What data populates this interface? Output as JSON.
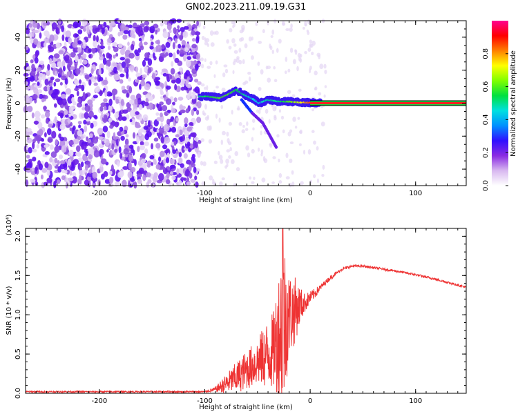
{
  "figure": {
    "title": "GN02.2023.211.09.19.G31"
  },
  "chart_data": [
    {
      "type": "heatmap",
      "xlabel": "Height of straight line (km)",
      "ylabel": "Frequency (Hz)",
      "xlim": [
        -270,
        148
      ],
      "ylim": [
        -50,
        50
      ],
      "xticks": [
        -200,
        -100,
        0,
        100
      ],
      "yticks": [
        -40,
        -20,
        0,
        20,
        40
      ],
      "colorbar": {
        "label": "Normalized spectral amplitude",
        "range": [
          0.0,
          1.0
        ],
        "ticks": [
          0.0,
          0.2,
          0.4,
          0.6,
          0.8
        ],
        "colors": [
          "#ffffff",
          "#d8b8f0",
          "#8a2be2",
          "#3010ff",
          "#0090ff",
          "#00e0e0",
          "#00e040",
          "#80ff00",
          "#ffff00",
          "#ff8000",
          "#ff0000",
          "#ff0090"
        ]
      },
      "features": {
        "noise_region_x": [
          -270,
          -105
        ],
        "frequency_track": {
          "x": [
            -105,
            -95,
            -85,
            -78,
            -70,
            -62,
            -55,
            -48,
            -40,
            -30,
            -20,
            -10,
            0,
            10,
            50,
            100,
            148
          ],
          "y": [
            4,
            4,
            3,
            5,
            8,
            5,
            3,
            0,
            2,
            1,
            1,
            0.5,
            0.3,
            0.2,
            0,
            0,
            0
          ],
          "amplitude": [
            0.5,
            0.55,
            0.6,
            0.6,
            0.55,
            0.5,
            0.45,
            0.45,
            0.5,
            0.5,
            0.6,
            0.7,
            0.85,
            0.9,
            0.95,
            0.95,
            0.95
          ]
        },
        "lower_branch": {
          "x": [
            -65,
            -55,
            -45,
            -38,
            -32
          ],
          "y": [
            2,
            -6,
            -12,
            -20,
            -27
          ]
        }
      }
    },
    {
      "type": "line",
      "xlabel": "Height of straight line (km)",
      "ylabel": "SNR (10 * v/v)",
      "yscale_label": "(x10⁴)",
      "xlim": [
        -270,
        148
      ],
      "ylim": [
        0.0,
        2.1
      ],
      "xticks": [
        -200,
        -100,
        0,
        100
      ],
      "yticks": [
        0.0,
        0.5,
        1.0,
        1.5,
        2.0
      ],
      "color": "#ee3333",
      "series": [
        {
          "x": [
            -270,
            -200,
            -150,
            -100,
            -90,
            -80,
            -70,
            -60,
            -50,
            -40,
            -35,
            -30,
            -26,
            -20,
            -15,
            -10,
            -5,
            0,
            5,
            10,
            15,
            20,
            25,
            30,
            40,
            50,
            60,
            80,
            100,
            120,
            148
          ],
          "values": [
            0.02,
            0.02,
            0.02,
            0.02,
            0.05,
            0.12,
            0.2,
            0.3,
            0.4,
            0.5,
            0.55,
            0.75,
            0.9,
            1.0,
            1.05,
            1.12,
            1.15,
            1.22,
            1.28,
            1.35,
            1.42,
            1.48,
            1.53,
            1.58,
            1.62,
            1.62,
            1.6,
            1.56,
            1.51,
            1.45,
            1.35
          ],
          "spread": [
            0.01,
            0.01,
            0.01,
            0.01,
            0.03,
            0.12,
            0.2,
            0.25,
            0.3,
            0.45,
            0.5,
            0.8,
            1.2,
            0.55,
            0.45,
            0.25,
            0.12,
            0.08,
            0.06,
            0.04,
            0.03,
            0.03,
            0.02,
            0.02,
            0.015,
            0.015,
            0.015,
            0.015,
            0.015,
            0.015,
            0.015
          ]
        }
      ]
    }
  ]
}
